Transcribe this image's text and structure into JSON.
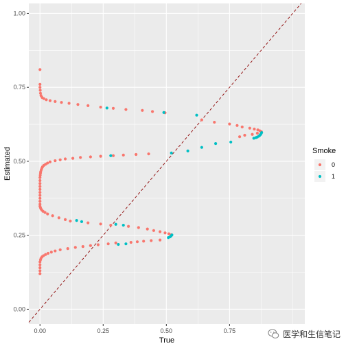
{
  "chart_data": {
    "type": "scatter",
    "xlabel": "True",
    "ylabel": "Estimated",
    "xlim": [
      0,
      1
    ],
    "ylim": [
      0,
      1
    ],
    "x_ticks": [
      0,
      0.25,
      0.5,
      0.75
    ],
    "x_tick_labels": [
      "0.00",
      "0.25",
      "0.50",
      "0.75"
    ],
    "y_ticks": [
      0,
      0.25,
      0.5,
      0.75,
      1
    ],
    "y_tick_labels": [
      "0.00",
      "0.25",
      "0.50",
      "0.75",
      "1.00"
    ],
    "grid": true,
    "background": "#EBEBEB",
    "reference_line": {
      "slope": 1,
      "intercept": 0,
      "style": "dashed",
      "color": "#8B0000"
    },
    "legend": {
      "title": "Smoke",
      "position": "right"
    },
    "series": [
      {
        "name": "0",
        "color": "#F8766D",
        "points": [
          [
            0.0,
            0.81
          ],
          [
            0.0,
            0.76
          ],
          [
            0.0,
            0.75
          ],
          [
            0.001,
            0.74
          ],
          [
            0.002,
            0.73
          ],
          [
            0.004,
            0.722
          ],
          [
            0.008,
            0.716
          ],
          [
            0.015,
            0.712
          ],
          [
            0.025,
            0.708
          ],
          [
            0.04,
            0.705
          ],
          [
            0.06,
            0.702
          ],
          [
            0.085,
            0.699
          ],
          [
            0.115,
            0.696
          ],
          [
            0.15,
            0.692
          ],
          [
            0.19,
            0.688
          ],
          [
            0.24,
            0.683
          ],
          [
            0.29,
            0.679
          ],
          [
            0.34,
            0.675
          ],
          [
            0.405,
            0.672
          ],
          [
            0.445,
            0.668
          ],
          [
            0.495,
            0.664
          ],
          [
            0.64,
            0.64
          ],
          [
            0.69,
            0.632
          ],
          [
            0.75,
            0.626
          ],
          [
            0.78,
            0.621
          ],
          [
            0.8,
            0.616
          ],
          [
            0.83,
            0.612
          ],
          [
            0.848,
            0.609
          ],
          [
            0.862,
            0.606
          ],
          [
            0.87,
            0.603
          ],
          [
            0.876,
            0.6
          ],
          [
            0.86,
            0.595
          ],
          [
            0.84,
            0.591
          ],
          [
            0.81,
            0.588
          ],
          [
            0.79,
            0.583
          ],
          [
            0.43,
            0.525
          ],
          [
            0.38,
            0.523
          ],
          [
            0.33,
            0.521
          ],
          [
            0.29,
            0.519
          ],
          [
            0.24,
            0.517
          ],
          [
            0.2,
            0.515
          ],
          [
            0.16,
            0.513
          ],
          [
            0.13,
            0.51
          ],
          [
            0.1,
            0.508
          ],
          [
            0.08,
            0.505
          ],
          [
            0.06,
            0.502
          ],
          [
            0.04,
            0.498
          ],
          [
            0.03,
            0.494
          ],
          [
            0.022,
            0.49
          ],
          [
            0.015,
            0.486
          ],
          [
            0.01,
            0.481
          ],
          [
            0.007,
            0.476
          ],
          [
            0.005,
            0.471
          ],
          [
            0.003,
            0.465
          ],
          [
            0.002,
            0.46
          ],
          [
            0.001,
            0.453
          ],
          [
            0.0,
            0.445
          ],
          [
            0.0,
            0.435
          ],
          [
            0.0,
            0.425
          ],
          [
            0.0,
            0.415
          ],
          [
            0.0,
            0.405
          ],
          [
            0.0,
            0.395
          ],
          [
            0.0,
            0.385
          ],
          [
            0.0,
            0.375
          ],
          [
            0.0,
            0.365
          ],
          [
            0.0,
            0.355
          ],
          [
            0.0,
            0.348
          ],
          [
            0.002,
            0.343
          ],
          [
            0.004,
            0.339
          ],
          [
            0.007,
            0.335
          ],
          [
            0.012,
            0.331
          ],
          [
            0.02,
            0.327
          ],
          [
            0.03,
            0.322
          ],
          [
            0.05,
            0.316
          ],
          [
            0.075,
            0.309
          ],
          [
            0.1,
            0.303
          ],
          [
            0.12,
            0.298
          ],
          [
            0.19,
            0.292
          ],
          [
            0.24,
            0.288
          ],
          [
            0.28,
            0.284
          ],
          [
            0.35,
            0.28
          ],
          [
            0.39,
            0.276
          ],
          [
            0.425,
            0.271
          ],
          [
            0.45,
            0.266
          ],
          [
            0.475,
            0.262
          ],
          [
            0.495,
            0.258
          ],
          [
            0.51,
            0.255
          ],
          [
            0.52,
            0.252
          ],
          [
            0.475,
            0.234
          ],
          [
            0.44,
            0.232
          ],
          [
            0.41,
            0.23
          ],
          [
            0.385,
            0.228
          ],
          [
            0.36,
            0.226
          ],
          [
            0.3,
            0.224
          ],
          [
            0.27,
            0.221
          ],
          [
            0.23,
            0.218
          ],
          [
            0.2,
            0.215
          ],
          [
            0.17,
            0.212
          ],
          [
            0.14,
            0.209
          ],
          [
            0.11,
            0.205
          ],
          [
            0.08,
            0.201
          ],
          [
            0.06,
            0.197
          ],
          [
            0.045,
            0.193
          ],
          [
            0.032,
            0.189
          ],
          [
            0.022,
            0.185
          ],
          [
            0.014,
            0.181
          ],
          [
            0.008,
            0.177
          ],
          [
            0.004,
            0.172
          ],
          [
            0.002,
            0.167
          ],
          [
            0.0,
            0.16
          ],
          [
            0.0,
            0.15
          ],
          [
            0.0,
            0.14
          ],
          [
            0.0,
            0.13
          ],
          [
            0.0,
            0.12
          ]
        ]
      },
      {
        "name": "1",
        "color": "#00BFC4",
        "points": [
          [
            0.265,
            0.68
          ],
          [
            0.49,
            0.665
          ],
          [
            0.62,
            0.656
          ],
          [
            0.877,
            0.597
          ],
          [
            0.875,
            0.594
          ],
          [
            0.873,
            0.591
          ],
          [
            0.87,
            0.588
          ],
          [
            0.866,
            0.585
          ],
          [
            0.86,
            0.582
          ],
          [
            0.854,
            0.58
          ],
          [
            0.846,
            0.578
          ],
          [
            0.755,
            0.565
          ],
          [
            0.695,
            0.56
          ],
          [
            0.64,
            0.547
          ],
          [
            0.585,
            0.535
          ],
          [
            0.52,
            0.528
          ],
          [
            0.28,
            0.519
          ],
          [
            0.145,
            0.3
          ],
          [
            0.165,
            0.296
          ],
          [
            0.3,
            0.287
          ],
          [
            0.33,
            0.284
          ],
          [
            0.522,
            0.251
          ],
          [
            0.519,
            0.248
          ],
          [
            0.515,
            0.245
          ],
          [
            0.508,
            0.242
          ],
          [
            0.34,
            0.221
          ],
          [
            0.31,
            0.219
          ]
        ]
      }
    ]
  },
  "watermark": {
    "text": "医学和生信笔记",
    "icon": "wechat-icon"
  }
}
